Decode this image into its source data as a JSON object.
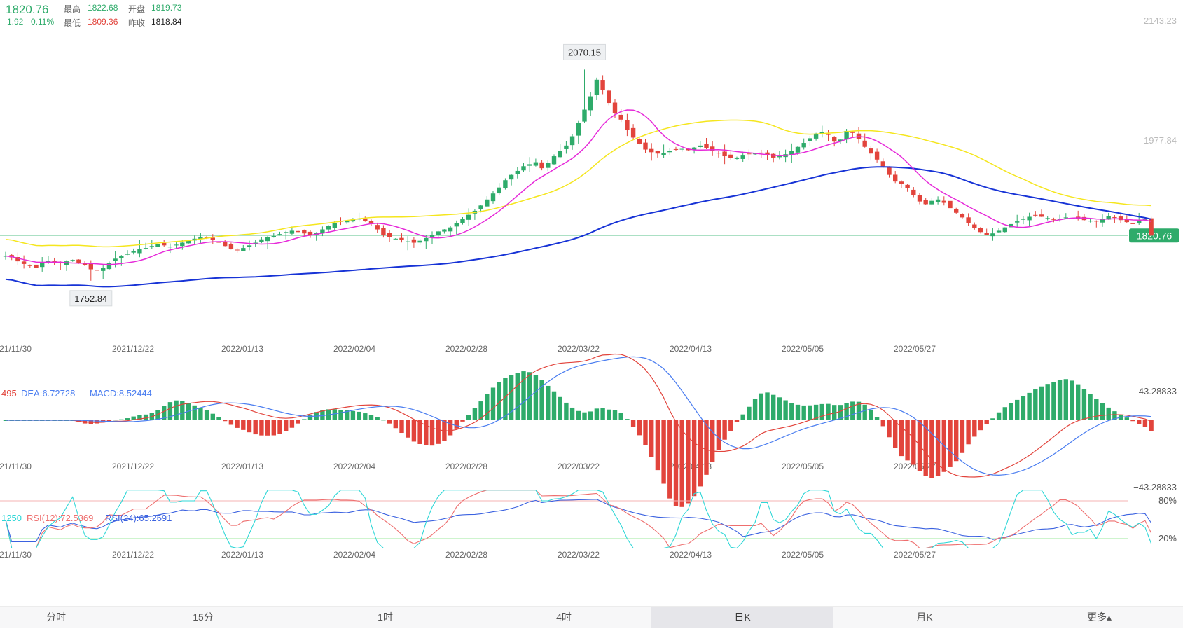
{
  "quote": {
    "price": "1820.76",
    "change": "1.92",
    "change_pct": "0.11%",
    "high_label": "最高",
    "high": "1822.68",
    "open_label": "开盘",
    "open": "1819.73",
    "low_label": "最低",
    "low": "1809.36",
    "prev_close_label": "昨收",
    "prev_close": "1818.84"
  },
  "colors": {
    "up": "#2eab6a",
    "down": "#e2443c",
    "ma1": "#1733d6",
    "ma2": "#e62ad9",
    "ma3": "#f5e61e",
    "dif": "#e2443c",
    "dea": "#4a7df0",
    "rsi6": "#2fd7d7",
    "rsi12": "#ee6e6e",
    "rsi24": "#3b62e0",
    "overbought": "#f5b3b3",
    "oversold": "#9ee89e"
  },
  "price_axis": {
    "top": "2143.23",
    "mid": "1977.84",
    "current_tag": "1820.76"
  },
  "x_dates": [
    "21/11/30",
    "2021/12/22",
    "2022/01/13",
    "2022/02/04",
    "2022/02/28",
    "2022/03/22",
    "2022/04/13",
    "2022/05/05",
    "2022/05/27"
  ],
  "peak_label": "2070.15",
  "trough_label": "1752.84",
  "macd_legend": {
    "dif": "495",
    "dea": "DEA:6.72728",
    "macd": "MACD:8.52444"
  },
  "macd_axis": {
    "top": "43.28833",
    "bottom": "−43.28833"
  },
  "rsi_legend": {
    "r6": "1250",
    "r12": "RSI(12):72.5369",
    "r24": "RSI(24):65.2691"
  },
  "rsi_axis": {
    "high": "80%",
    "low": "20%"
  },
  "tabs": [
    {
      "label": "分时",
      "active": false
    },
    {
      "label": "15分",
      "active": false
    },
    {
      "label": "1时",
      "active": false
    },
    {
      "label": "4时",
      "active": false
    },
    {
      "label": "日K",
      "active": true
    },
    {
      "label": "月K",
      "active": false
    },
    {
      "label": "更多▴",
      "active": false
    }
  ],
  "chart_data": {
    "type": "candlestick",
    "price_range": [
      1680,
      2143.23
    ],
    "closes": [
      1790,
      1788,
      1782,
      1778,
      1775,
      1772,
      1779,
      1783,
      1781,
      1779,
      1782,
      1784,
      1780,
      1776,
      1770,
      1768,
      1772,
      1780,
      1786,
      1790,
      1793,
      1797,
      1800,
      1802,
      1805,
      1808,
      1806,
      1804,
      1807,
      1810,
      1813,
      1816,
      1819,
      1817,
      1814,
      1810,
      1805,
      1801,
      1799,
      1802,
      1806,
      1810,
      1815,
      1819,
      1820,
      1823,
      1826,
      1828,
      1826,
      1824,
      1822,
      1825,
      1830,
      1835,
      1840,
      1842,
      1843,
      1845,
      1846,
      1843,
      1838,
      1830,
      1822,
      1818,
      1816,
      1814,
      1812,
      1810,
      1813,
      1817,
      1822,
      1827,
      1830,
      1833,
      1840,
      1846,
      1852,
      1858,
      1866,
      1875,
      1884,
      1893,
      1904,
      1912,
      1918,
      1925,
      1928,
      1931,
      1922,
      1930,
      1940,
      1948,
      1956,
      1970,
      1990,
      2010,
      2030,
      2055,
      2040,
      2020,
      2005,
      1995,
      1980,
      1968,
      1958,
      1950,
      1946,
      1944,
      1945,
      1948,
      1950,
      1951,
      1949,
      1953,
      1956,
      1952,
      1948,
      1945,
      1940,
      1937,
      1938,
      1941,
      1943,
      1944,
      1945,
      1942,
      1938,
      1940,
      1943,
      1948,
      1954,
      1960,
      1967,
      1974,
      1976,
      1972,
      1962,
      1965,
      1978,
      1975,
      1966,
      1954,
      1944,
      1935,
      1925,
      1912,
      1902,
      1898,
      1892,
      1882,
      1872,
      1868,
      1873,
      1875,
      1870,
      1862,
      1855,
      1848,
      1840,
      1832,
      1826,
      1822,
      1824,
      1828,
      1833,
      1838,
      1842,
      1846,
      1849,
      1851,
      1849,
      1847,
      1845,
      1846,
      1848,
      1847,
      1846,
      1844,
      1843,
      1842,
      1846,
      1850,
      1848,
      1844,
      1841,
      1838,
      1844,
      1846,
      1820.76
    ],
    "ma_series": [
      "MA blue",
      "MA magenta",
      "MA yellow"
    ],
    "macd_range": [
      -43.28833,
      43.28833
    ],
    "rsi_levels": [
      80,
      20
    ]
  }
}
